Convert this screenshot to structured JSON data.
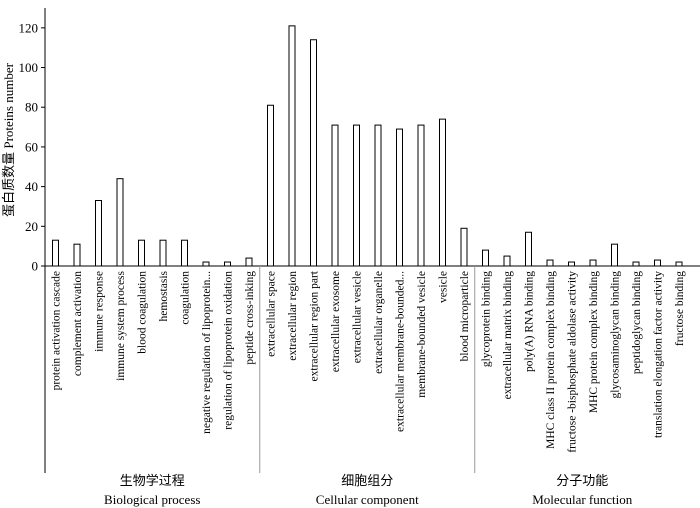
{
  "chart_data": {
    "type": "bar",
    "ylabel": "蛋白质数量  Proteins number",
    "ylim": [
      0,
      130
    ],
    "yticks": [
      0,
      20,
      40,
      60,
      80,
      100,
      120
    ],
    "categories": [
      "protein activation cascade",
      "complement activation",
      "immune response",
      "immune system process",
      "blood coagulation",
      "hemostasis",
      "coagulation",
      "negative regulation of lipoprotein...",
      "regulation of lipoprotein oxidation",
      "peptide cross-inking",
      "extracellular space",
      "extracellular region",
      "extracellular region part",
      "extracellular exosome",
      "extracellular vesicle",
      "extracellular organelle",
      "extracellular membrane-bounded...",
      "membrane-bounded vesicle",
      "vesicle",
      "blood microparticle",
      "glycoprotein binding",
      "extracellular matrix binding",
      "poly(A) RNA binding",
      "MHC class II protein complex binding",
      "fructose -bisphosphate aldolase activity",
      "MHC protein complex binding",
      "glycosaminoglycan binding",
      "peptidoglycan binding",
      "translation elongation factor activity",
      "fructose binding"
    ],
    "values": [
      13,
      11,
      33,
      44,
      13,
      13,
      13,
      2,
      2,
      4,
      81,
      121,
      114,
      71,
      71,
      71,
      69,
      71,
      74,
      19,
      8,
      5,
      17,
      3,
      2,
      3,
      11,
      2,
      3,
      2
    ],
    "groups": [
      {
        "name_cn": "生物学过程",
        "name_en": "Biological process",
        "count": 10
      },
      {
        "name_cn": "细胞组分",
        "name_en": "Cellular component",
        "count": 10
      },
      {
        "name_cn": "分子功能",
        "name_en": "Molecular function",
        "count": 10
      }
    ]
  }
}
